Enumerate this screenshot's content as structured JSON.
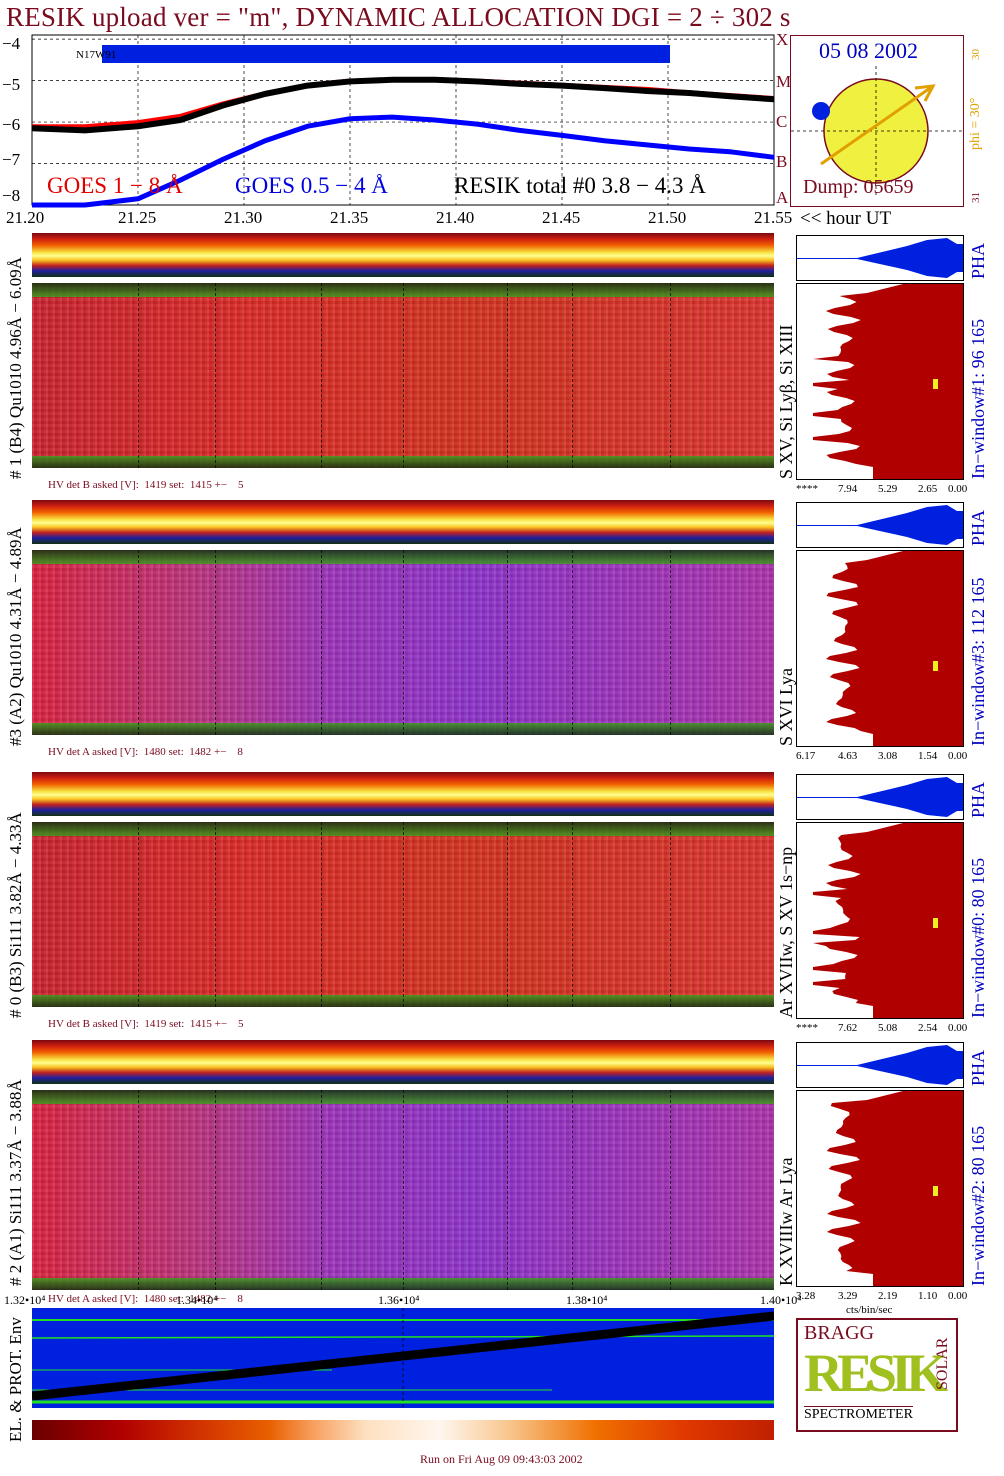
{
  "title": "RESIK upload ver = \"m\", DYNAMIC ALLOCATION  DGI =   2 ÷ 302 s",
  "colors": {
    "title": "#7a0a1e",
    "goes18": "#ff0000",
    "goes054": "#0000ff",
    "resik": "#000000",
    "pha_fill": "#0020e0",
    "hist_fill": "#b00000",
    "bar_blue": "#0020e0",
    "sun_fill": "#f0f040",
    "sun_arrow": "#e0a000"
  },
  "lightcurve": {
    "bar_label": "N17W91",
    "legend_goes18": "GOES 1 − 8 Å",
    "legend_goes054": "GOES 0.5 − 4 Å",
    "legend_resik": "RESIK total #0  3.8 − 4.3 Å",
    "y_ticks": [
      "−4",
      "−5",
      "−6",
      "−7",
      "−8"
    ],
    "x_ticks": [
      "21.20",
      "21.25",
      "21.30",
      "21.35",
      "21.40",
      "21.45",
      "21.50",
      "21.55"
    ],
    "x_unit": "<< hour UT",
    "class_letters": [
      "X",
      "M",
      "C",
      "B",
      "A"
    ]
  },
  "chart_data": {
    "type": "line",
    "title": "RESIK upload ver = \"m\", DYNAMIC ALLOCATION  DGI =   2 ÷ 302 s",
    "xlabel": "hour UT",
    "ylabel": "",
    "xlim": [
      21.2,
      21.55
    ],
    "ylim": [
      -8,
      -3.9
    ],
    "x": [
      21.2,
      21.225,
      21.25,
      21.27,
      21.29,
      21.31,
      21.33,
      21.35,
      21.37,
      21.39,
      21.41,
      21.43,
      21.45,
      21.47,
      21.49,
      21.51,
      21.53,
      21.55
    ],
    "series": [
      {
        "name": "GOES 1 − 8 Å",
        "color": "#ff0000",
        "values": [
          -6.1,
          -6.1,
          -6.0,
          -5.85,
          -5.55,
          -5.3,
          -5.1,
          -5.0,
          -4.97,
          -4.97,
          -5.0,
          -5.05,
          -5.1,
          -5.15,
          -5.2,
          -5.28,
          -5.35,
          -5.42
        ]
      },
      {
        "name": "GOES 0.5 − 4 Å",
        "color": "#0000ff",
        "values": [
          -8.0,
          -8.0,
          -7.85,
          -7.4,
          -6.9,
          -6.45,
          -6.1,
          -5.92,
          -5.88,
          -5.95,
          -6.05,
          -6.2,
          -6.32,
          -6.45,
          -6.55,
          -6.65,
          -6.72,
          -6.85
        ]
      },
      {
        "name": "RESIK total #0  3.8 − 4.3 Å",
        "color": "#000000",
        "values": [
          -6.15,
          -6.2,
          -6.1,
          -5.95,
          -5.6,
          -5.32,
          -5.12,
          -5.02,
          -4.98,
          -4.98,
          -5.02,
          -5.08,
          -5.12,
          -5.18,
          -5.25,
          -5.3,
          -5.38,
          -5.45
        ]
      }
    ],
    "grid": true
  },
  "sun": {
    "date": "05 08 2002",
    "dump": "Dump: 05659",
    "phi": "phi = 30°",
    "top_val": "30",
    "bot_val": "31"
  },
  "panels": [
    {
      "label": "# 1 (B4) Qu1010 4.96Å − 6.09Å",
      "line_id": "S XV, Si Lyβ, Si XIII",
      "hv": "HV det B asked [V]:  1419 set:  1415 +−    5",
      "pha": "PHA",
      "window": "In−window#1:   96 165",
      "scale": [
        "****",
        "7.94",
        "5.29",
        "2.65",
        "0.00"
      ]
    },
    {
      "label": "#3 (A2) Qu1010  4.31Å − 4.89Å",
      "line_id": "S XVI Lya",
      "hv": "HV det A asked [V]:  1480 set:  1482 +−    8",
      "pha": "PHA",
      "window": "In−window#3:  112 165",
      "scale": [
        "6.17",
        "4.63",
        "3.08",
        "1.54",
        "0.00"
      ]
    },
    {
      "label": "# 0 (B3) Si111  3.82Å − 4.33Å",
      "line_id": "Ar XVIIw,  S XV 1s−np",
      "hv": "HV det B asked [V]:  1419 set:  1415 +−    5",
      "pha": "PHA",
      "window": "In−window#0:   80 165",
      "scale": [
        "****",
        "7.62",
        "5.08",
        "2.54",
        "0.00"
      ]
    },
    {
      "label": "# 2 (A1) Si111  3.37Å − 3.88Å",
      "line_id": "K XVIIIw  Ar Lya",
      "hv": "HV det A asked [V]:  1480 set:  1482 +−    8",
      "pha": "PHA",
      "window": "In−window#2:   80 165",
      "scale": [
        "3.28",
        "3.29",
        "2.19",
        "1.10",
        "0.00"
      ]
    }
  ],
  "hist_unit": "cts/bin/sec",
  "env": {
    "label": "EL. & PROT. Env",
    "x_ticks": [
      "1.32•10⁴",
      "1.34•10⁴",
      "1.36•10⁴",
      "1.38•10⁴",
      "1.40•10⁴"
    ]
  },
  "logo": {
    "bragg": "BRAGG",
    "resik": "RESIK",
    "solar": "SOLAR",
    "spectrometer": "SPECTROMETER"
  },
  "footer": "Run on Fri Aug 09 09:43:03 2002"
}
